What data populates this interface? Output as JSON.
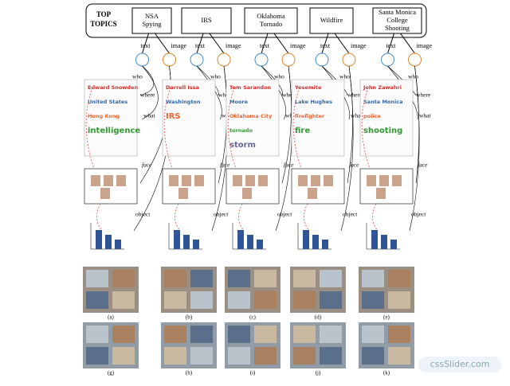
{
  "header": {
    "label": [
      "TOP",
      "TOPICS"
    ]
  },
  "columns": [
    {
      "topic": [
        "NSA",
        "Spying"
      ],
      "text": "text",
      "image": "image",
      "words": [
        "Edward Snowden",
        "United States",
        "Hong Kong",
        "intelligence"
      ],
      "panels": [
        "(a)",
        "(g)"
      ]
    },
    {
      "topic": [
        "IRS"
      ],
      "text": "text",
      "image": "image",
      "words": [
        "Darrell Issa",
        "Washington",
        "IRS"
      ],
      "panels": [
        "(b)",
        "(h)"
      ]
    },
    {
      "topic": [
        "Oklahoma",
        "Tornado"
      ],
      "text": "text",
      "image": "image",
      "words": [
        "Tom Sarandon",
        "Moore",
        "Oklahoma City",
        "tornado",
        "storm"
      ],
      "panels": [
        "(c)",
        "(i)"
      ]
    },
    {
      "topic": [
        "Wildfire"
      ],
      "text": "text",
      "image": "image",
      "words": [
        "Yosemite",
        "Lake Hughes",
        "firefighter",
        "fire"
      ],
      "panels": [
        "(d)",
        "(j)"
      ]
    },
    {
      "topic": [
        "Santa Monica",
        "College",
        "Shooting"
      ],
      "text": "text",
      "image": "image",
      "words": [
        "John Zawahri",
        "Santa Monica",
        "police",
        "shooting"
      ],
      "panels": [
        "(e)",
        "(k)"
      ]
    }
  ],
  "edges": {
    "who": "who",
    "where": "where",
    "what": "what",
    "face": "face",
    "object": "object"
  },
  "watermark": "cssSlider.com"
}
